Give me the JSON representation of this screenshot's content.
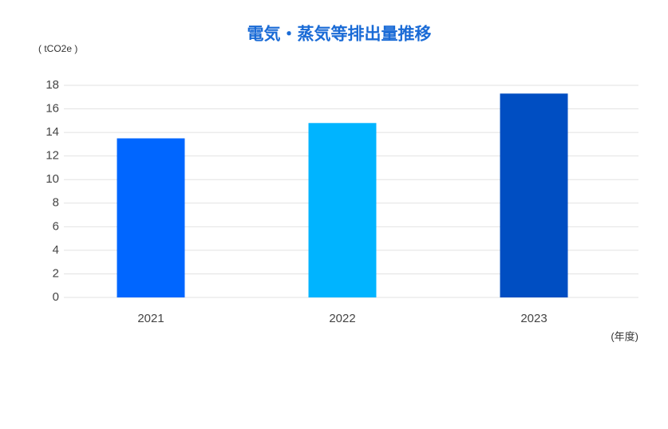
{
  "chart_data": {
    "type": "bar",
    "title": "電気・蒸気等排出量推移",
    "y_label": "( tCO2e )",
    "x_label": "(年度)",
    "categories": [
      "2021",
      "2022",
      "2023"
    ],
    "values": [
      13.5,
      14.8,
      17.3
    ],
    "colors": [
      "#0066ff",
      "#00b4ff",
      "#004ec2"
    ],
    "ylim": [
      0,
      18
    ],
    "yticks": [
      0,
      2,
      4,
      6,
      8,
      10,
      12,
      14,
      16,
      18
    ],
    "grid": true
  }
}
